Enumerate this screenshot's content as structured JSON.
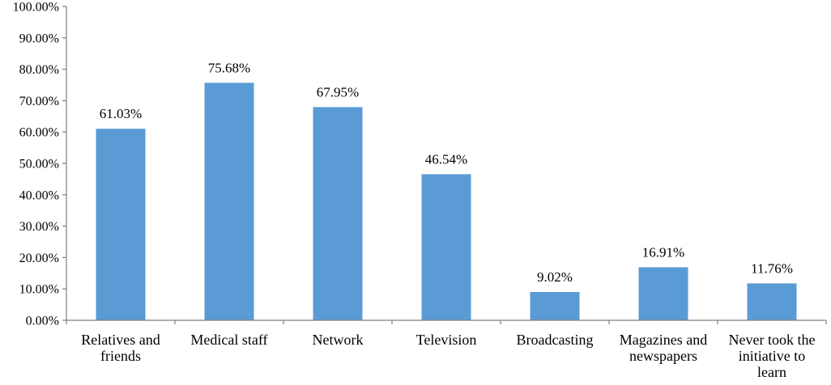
{
  "chart_data": {
    "type": "bar",
    "title": "",
    "xlabel": "",
    "ylabel": "",
    "categories": [
      [
        "Relatives and",
        "friends"
      ],
      [
        "Medical staff"
      ],
      [
        "Network"
      ],
      [
        "Television"
      ],
      [
        "Broadcasting"
      ],
      [
        "Magazines and",
        "newspapers"
      ],
      [
        "Never took the",
        "initiative to",
        "learn"
      ]
    ],
    "values": [
      61.03,
      75.68,
      67.95,
      46.54,
      9.02,
      16.91,
      11.76
    ],
    "data_labels": [
      "61.03%",
      "75.68%",
      "67.95%",
      "46.54%",
      "9.02%",
      "16.91%",
      "11.76%"
    ],
    "ylim": [
      0,
      100
    ],
    "yticks": [
      {
        "value": 0,
        "label": "0.00%"
      },
      {
        "value": 10,
        "label": "10.00%"
      },
      {
        "value": 20,
        "label": "20.00%"
      },
      {
        "value": 30,
        "label": "30.00%"
      },
      {
        "value": 40,
        "label": "40.00%"
      },
      {
        "value": 50,
        "label": "50.00%"
      },
      {
        "value": 60,
        "label": "60.00%"
      },
      {
        "value": 70,
        "label": "70.00%"
      },
      {
        "value": 80,
        "label": "80.00%"
      },
      {
        "value": 90,
        "label": "90.00%"
      },
      {
        "value": 100,
        "label": "100.00%"
      }
    ],
    "grid": false,
    "legend": "none",
    "bar_color": "#5b9bd5",
    "axis_color": "#808080"
  }
}
